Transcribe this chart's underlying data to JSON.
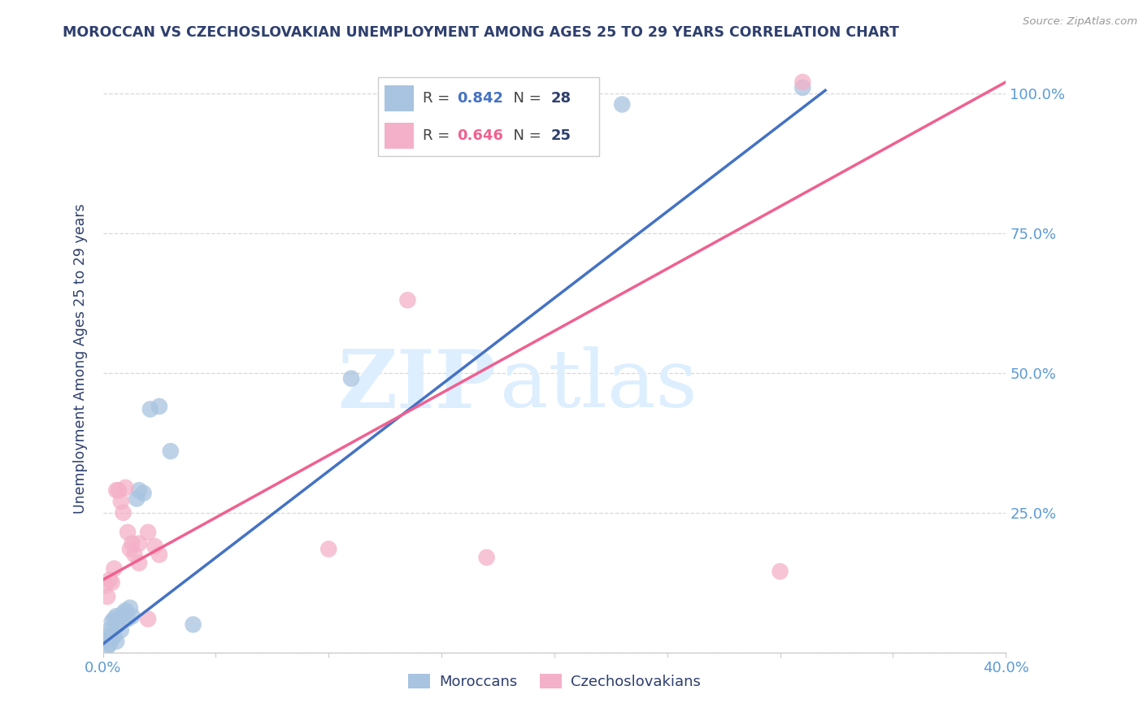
{
  "title": "MOROCCAN VS CZECHOSLOVAKIAN UNEMPLOYMENT AMONG AGES 25 TO 29 YEARS CORRELATION CHART",
  "source": "Source: ZipAtlas.com",
  "ylabel": "Unemployment Among Ages 25 to 29 years",
  "xlim": [
    0.0,
    0.4
  ],
  "ylim": [
    0.0,
    1.05
  ],
  "xticks": [
    0.0,
    0.05,
    0.1,
    0.15,
    0.2,
    0.25,
    0.3,
    0.35,
    0.4
  ],
  "xticklabels": [
    "0.0%",
    "",
    "",
    "",
    "",
    "",
    "",
    "",
    "40.0%"
  ],
  "yticks": [
    0.0,
    0.25,
    0.5,
    0.75,
    1.0
  ],
  "yticklabels": [
    "",
    "25.0%",
    "50.0%",
    "75.0%",
    "100.0%"
  ],
  "moroccan_R": 0.842,
  "moroccan_N": 28,
  "czech_R": 0.646,
  "czech_N": 25,
  "moroccan_color": "#a8c4e0",
  "czech_color": "#f4b0c8",
  "moroccan_line_color": "#4472c4",
  "czech_line_color": "#f06090",
  "title_color": "#2e3f6e",
  "axis_label_color": "#2e3f6e",
  "tick_color": "#5b9bd5",
  "legend_N_color": "#2e3f6e",
  "background_color": "#ffffff",
  "watermark_zip": "ZIP",
  "watermark_atlas": "atlas",
  "watermark_color": "#ddeeff",
  "moroccan_x": [
    0.001,
    0.002,
    0.002,
    0.003,
    0.003,
    0.004,
    0.004,
    0.005,
    0.005,
    0.006,
    0.006,
    0.007,
    0.008,
    0.009,
    0.01,
    0.011,
    0.012,
    0.013,
    0.015,
    0.016,
    0.018,
    0.021,
    0.025,
    0.03,
    0.04,
    0.11,
    0.23,
    0.31
  ],
  "moroccan_y": [
    0.02,
    0.01,
    0.03,
    0.015,
    0.04,
    0.025,
    0.055,
    0.03,
    0.06,
    0.02,
    0.065,
    0.05,
    0.04,
    0.07,
    0.075,
    0.06,
    0.08,
    0.065,
    0.275,
    0.29,
    0.285,
    0.435,
    0.44,
    0.36,
    0.05,
    0.49,
    0.98,
    1.01
  ],
  "czech_x": [
    0.001,
    0.002,
    0.003,
    0.004,
    0.005,
    0.006,
    0.007,
    0.008,
    0.009,
    0.01,
    0.011,
    0.012,
    0.013,
    0.014,
    0.016,
    0.02,
    0.023,
    0.1,
    0.135,
    0.17,
    0.016,
    0.02,
    0.025,
    0.3,
    0.31
  ],
  "czech_y": [
    0.12,
    0.1,
    0.13,
    0.125,
    0.15,
    0.29,
    0.29,
    0.27,
    0.25,
    0.295,
    0.215,
    0.185,
    0.195,
    0.175,
    0.195,
    0.215,
    0.19,
    0.185,
    0.63,
    0.17,
    0.16,
    0.06,
    0.175,
    0.145,
    1.02
  ],
  "moroccan_line_x": [
    0.0,
    0.32
  ],
  "moroccan_line_y": [
    0.015,
    1.005
  ],
  "czech_line_x": [
    0.0,
    0.4
  ],
  "czech_line_y": [
    0.13,
    1.02
  ]
}
